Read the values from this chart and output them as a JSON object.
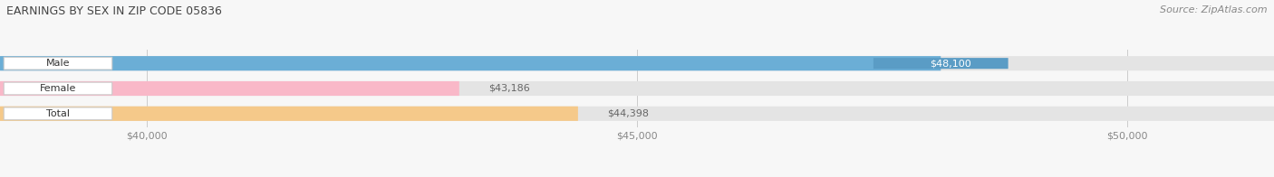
{
  "title": "EARNINGS BY SEX IN ZIP CODE 05836",
  "source": "Source: ZipAtlas.com",
  "categories": [
    "Male",
    "Female",
    "Total"
  ],
  "values": [
    48100,
    43186,
    44398
  ],
  "bar_colors": [
    "#6baed6",
    "#f9b8c8",
    "#f5c98a"
  ],
  "bar_bg_color": "#e4e4e4",
  "xlim_min": 38500,
  "xlim_max": 51500,
  "xticks": [
    40000,
    45000,
    50000
  ],
  "xtick_labels": [
    "$40,000",
    "$45,000",
    "$50,000"
  ],
  "value_labels": [
    "$48,100",
    "$43,186",
    "$44,398"
  ],
  "value_label_colors": [
    "#5a9cc5",
    "#dddddd",
    "#dddddd"
  ],
  "value_label_text_colors": [
    "#ffffff",
    "#666666",
    "#666666"
  ],
  "bar_height": 0.58,
  "figsize": [
    14.06,
    1.96
  ],
  "dpi": 100,
  "title_fontsize": 9,
  "source_fontsize": 8,
  "bar_label_fontsize": 8,
  "tick_fontsize": 8,
  "category_fontsize": 8
}
